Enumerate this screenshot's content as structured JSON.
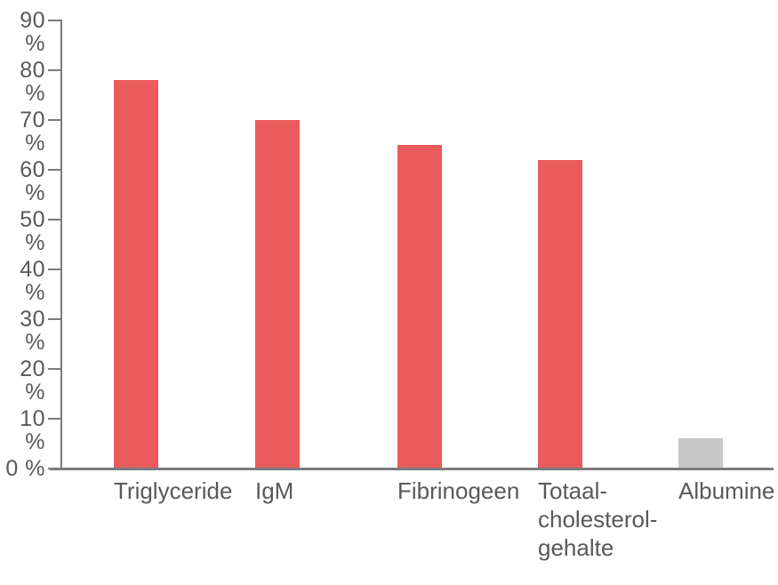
{
  "chart_data": {
    "type": "bar",
    "categories": [
      "Triglyceride",
      "IgM",
      "Fibrinogeen",
      "Totaal-\ncholesterol-\ngehalte",
      "Albumine"
    ],
    "values": [
      78,
      70,
      65,
      62,
      6
    ],
    "bar_colors": [
      "#ea5b5b",
      "#ea5b5b",
      "#ea5b5b",
      "#ea5b5b",
      "#c8c8c8"
    ],
    "title": "",
    "xlabel": "",
    "ylabel": "",
    "ylim": [
      0,
      90
    ],
    "ytick_step": 10,
    "ytick_labels": [
      "0 %",
      "10 %",
      "20 %",
      "30 %",
      "40 %",
      "50 %",
      "60 %",
      "70 %",
      "80 %",
      "90 %"
    ],
    "grid": false,
    "legend": "none"
  },
  "colors": {
    "bar_red": "#ea5b5b",
    "bar_gray": "#c8c8c8",
    "axis_line": "#7a7b7e",
    "label_text": "#58595b",
    "background": "#ffffff"
  }
}
